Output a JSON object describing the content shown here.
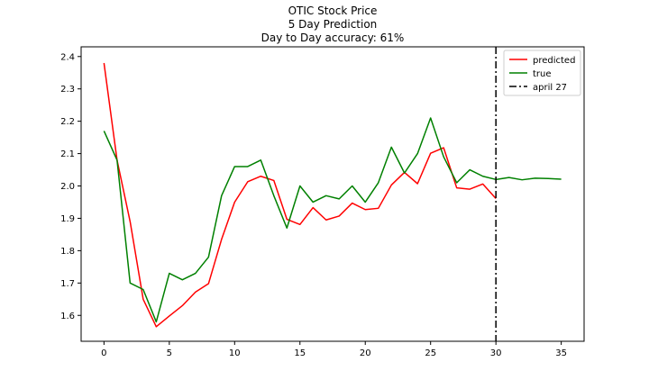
{
  "chart_data": {
    "type": "line",
    "title_lines": [
      "OTIC Stock Price",
      "5 Day Prediction",
      "Day to Day accuracy: 61%"
    ],
    "xlabel": "",
    "ylabel": "",
    "xlim": [
      -1.75,
      36.75
    ],
    "ylim": [
      1.52,
      2.43
    ],
    "xticks": [
      0,
      5,
      10,
      15,
      20,
      25,
      30,
      35
    ],
    "yticks": [
      1.6,
      1.7,
      1.8,
      1.9,
      2.0,
      2.1,
      2.2,
      2.3,
      2.4
    ],
    "ytick_labels": [
      "1.6",
      "1.7",
      "1.8",
      "1.9",
      "2.0",
      "2.1",
      "2.2",
      "2.3",
      "2.4"
    ],
    "grid": false,
    "legend_position": "top-right",
    "series": [
      {
        "name": "predicted",
        "color": "#ff0000",
        "x": [
          0,
          1,
          2,
          3,
          4,
          5,
          6,
          7,
          8,
          9,
          10,
          11,
          12,
          13,
          14,
          15,
          16,
          17,
          18,
          19,
          20,
          21,
          22,
          23,
          24,
          25,
          26,
          27,
          28,
          29,
          30
        ],
        "y": [
          2.38,
          2.08,
          1.89,
          1.65,
          1.565,
          1.598,
          1.63,
          1.672,
          1.698,
          1.835,
          1.95,
          2.013,
          2.03,
          2.017,
          1.897,
          1.881,
          1.933,
          1.895,
          1.907,
          1.947,
          1.927,
          1.931,
          2.003,
          2.042,
          2.007,
          2.101,
          2.118,
          1.994,
          1.99,
          2.006,
          1.961
        ]
      },
      {
        "name": "true",
        "color": "#008000",
        "x": [
          0,
          1,
          2,
          3,
          4,
          5,
          6,
          7,
          8,
          9,
          10,
          11,
          12,
          13,
          14,
          15,
          16,
          17,
          18,
          19,
          20,
          21,
          22,
          23,
          24,
          25,
          26,
          27,
          28,
          29,
          30,
          31,
          32,
          33,
          34,
          35
        ],
        "y": [
          2.17,
          2.08,
          1.7,
          1.68,
          1.58,
          1.73,
          1.71,
          1.73,
          1.78,
          1.97,
          2.06,
          2.06,
          2.08,
          1.97,
          1.87,
          2.0,
          1.95,
          1.97,
          1.96,
          2.0,
          1.95,
          2.01,
          2.12,
          2.04,
          2.1,
          2.21,
          2.09,
          2.01,
          2.05,
          2.03,
          2.02,
          2.026,
          2.019,
          2.024,
          2.023,
          2.021
        ]
      }
    ],
    "annotations": [
      {
        "type": "vline",
        "x": 30,
        "label": "april 27",
        "color": "#000000",
        "style": "dashdot"
      }
    ]
  }
}
